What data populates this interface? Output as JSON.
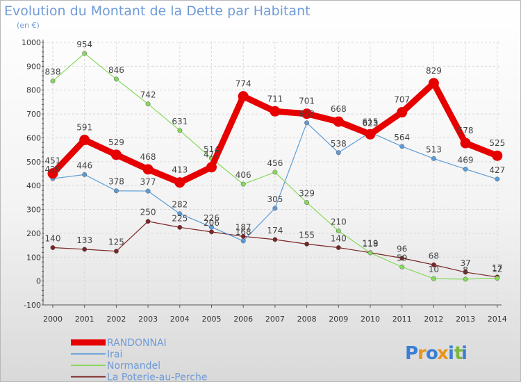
{
  "chart_data": {
    "type": "line",
    "title": "Evolution du Montant de la Dette par Habitant",
    "subtitle": "(en €)",
    "xlabel": "",
    "ylabel": "",
    "ylim": [
      -100,
      1000
    ],
    "yticks": [
      -100,
      0,
      100,
      200,
      300,
      400,
      500,
      600,
      700,
      800,
      900,
      1000
    ],
    "x": [
      2000,
      2001,
      2002,
      2003,
      2004,
      2005,
      2006,
      2007,
      2008,
      2009,
      2010,
      2011,
      2012,
      2013,
      2014
    ],
    "grid": true,
    "legend_position": "bottom-left",
    "series": [
      {
        "name": "RANDONNAI",
        "color": "#e60000",
        "values": [
          451,
          591,
          529,
          468,
          413,
          477,
          774,
          711,
          701,
          668,
          615,
          707,
          829,
          578,
          525
        ]
      },
      {
        "name": "Irai",
        "color": "#5d9cd6",
        "values": [
          429,
          446,
          378,
          377,
          282,
          226,
          168,
          305,
          663,
          538,
          623,
          564,
          513,
          469,
          427
        ]
      },
      {
        "name": "Normandel",
        "color": "#86d95c",
        "values": [
          838,
          954,
          846,
          742,
          631,
          514,
          406,
          456,
          329,
          210,
          118,
          59,
          10,
          8,
          12
        ]
      },
      {
        "name": "La Poterie-au-Perche",
        "color": "#7a2424",
        "values": [
          140,
          133,
          125,
          250,
          225,
          206,
          187,
          174,
          155,
          140,
          119,
          96,
          68,
          37,
          17
        ]
      }
    ]
  },
  "branding": {
    "logo_text": "Proxiti",
    "logo_letters": [
      "P",
      "r",
      "o",
      "x",
      "i",
      "t",
      "i"
    ],
    "logo_colors": [
      "#3a7fd5",
      "#e8951e",
      "#3a7fd5",
      "#e8951e",
      "#3a7fd5",
      "#7ab83c",
      "#3a7fd5"
    ]
  }
}
